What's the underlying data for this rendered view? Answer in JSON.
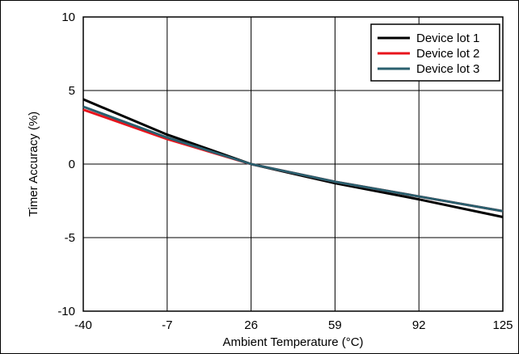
{
  "chart_data": {
    "type": "line",
    "xlabel": "Ambient Temperature (°C)",
    "ylabel": "Timer Accuracy (%)",
    "xlim": [
      -40,
      125
    ],
    "ylim": [
      -10,
      10
    ],
    "xticks": [
      -40,
      -7,
      26,
      59,
      92,
      125
    ],
    "yticks": [
      10,
      5,
      0,
      -5,
      -10
    ],
    "grid": true,
    "legend_position": "top-right",
    "series": [
      {
        "name": "Device lot 1",
        "color": "#000000",
        "x": [
          -40,
          -7,
          26,
          59,
          92,
          125
        ],
        "y": [
          4.4,
          2.0,
          0.0,
          -1.3,
          -2.4,
          -3.6
        ]
      },
      {
        "name": "Device lot 2",
        "color": "#e8141c",
        "x": [
          -40,
          -7,
          26,
          59,
          92,
          125
        ],
        "y": [
          3.7,
          1.7,
          0.0,
          -1.2,
          -2.2,
          -3.2
        ]
      },
      {
        "name": "Device lot 3",
        "color": "#2a5f6e",
        "x": [
          -40,
          -7,
          26,
          59,
          92,
          125
        ],
        "y": [
          3.9,
          1.8,
          0.0,
          -1.2,
          -2.2,
          -3.2
        ]
      }
    ]
  }
}
